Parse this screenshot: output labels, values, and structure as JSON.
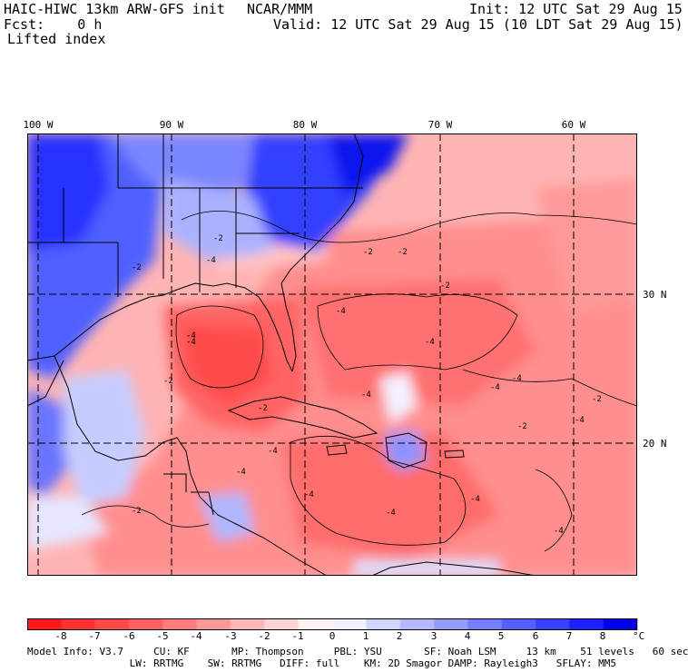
{
  "header": {
    "model": "HAIC-HIWC 13km ARW-GFS init",
    "org": "NCAR/MMM",
    "init": "Init: 12 UTC Sat 29 Aug 15",
    "fcst": "Fcst:    0 h",
    "valid": "Valid: 12 UTC Sat 29 Aug 15 (10 LDT Sat 29 Aug 15)",
    "field": "Lifted index"
  },
  "map": {
    "lon_labels": [
      "100 W",
      "90 W",
      "80 W",
      "70 W",
      "60 W"
    ],
    "lat_labels": [
      "30 N",
      "20 N"
    ],
    "contour_labels": [
      "-2",
      "-4",
      "-2",
      "-2",
      "-4",
      "-4",
      "-4",
      "-4",
      "-2",
      "-4",
      "-4",
      "-2",
      "-4",
      "-2",
      "-4",
      "-4",
      "-2",
      "-4",
      "-2",
      "-4",
      "-2",
      "-4",
      "-4",
      "-4",
      "-2"
    ]
  },
  "colorbar": {
    "ticks": [
      "-8",
      "-7",
      "-6",
      "-5",
      "-4",
      "-3",
      "-2",
      "-1",
      "0",
      "1",
      "2",
      "3",
      "4",
      "5",
      "6",
      "7",
      "8"
    ],
    "unit": "°C",
    "colors": [
      "#ff1a1a",
      "#ff3030",
      "#ff4848",
      "#ff6060",
      "#ff7c7c",
      "#ff9898",
      "#ffb6b6",
      "#ffd4d4",
      "#fff2f2",
      "#f2f2ff",
      "#d2d6ff",
      "#b4baff",
      "#949cff",
      "#767eff",
      "#5660ff",
      "#3a40ff",
      "#1c22ff",
      "#0000ee"
    ]
  },
  "model_info": {
    "line1": "Model Info: V3.7     CU: KF       MP: Thompson     PBL: YSU       SF: Noah LSM     13 km    51 levels   60 sec",
    "line2": "                 LW: RRTMG    SW: RRTMG   DIFF: full    KM: 2D Smagor DAMP: Rayleigh3   SFLAY: MM5"
  }
}
